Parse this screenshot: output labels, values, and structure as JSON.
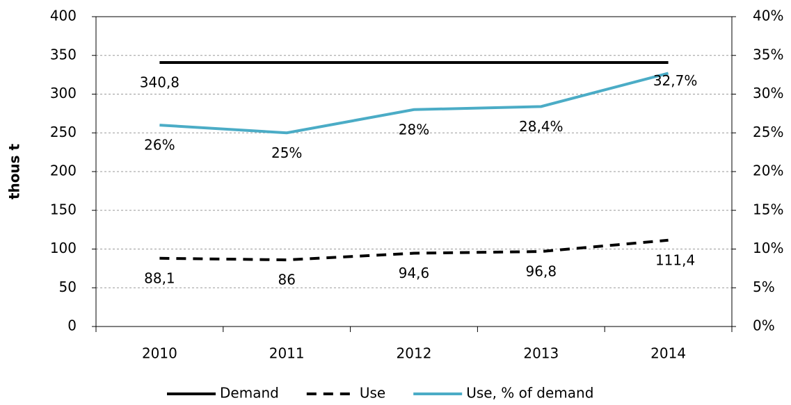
{
  "chart_data": {
    "type": "line",
    "y_label": "thous t",
    "categories": [
      "2010",
      "2011",
      "2012",
      "2013",
      "2014"
    ],
    "series": [
      {
        "name": "Demand",
        "color": "#000000",
        "style": "solid",
        "values": [
          340.8,
          340.8,
          340.8,
          340.8,
          340.8
        ],
        "value_labels": [
          "340,8",
          null,
          null,
          null,
          null
        ]
      },
      {
        "name": "Use",
        "color": "#000000",
        "style": "dashed",
        "values": [
          88.1,
          86,
          94.6,
          96.8,
          111.4
        ],
        "value_labels": [
          "88,1",
          "86",
          "94,6",
          "96,8",
          "111,4"
        ]
      },
      {
        "name": "Use, % of demand",
        "color": "#4bacc6",
        "style": "solid",
        "axis": "y2",
        "values": [
          26,
          25,
          28,
          28.4,
          32.7
        ],
        "value_labels": [
          "26%",
          "25%",
          "28%",
          "28,4%",
          "32,7%"
        ]
      }
    ],
    "ylim": [
      0,
      400
    ],
    "yticks": [
      0,
      50,
      100,
      150,
      200,
      250,
      300,
      350,
      400
    ],
    "y2lim": [
      0,
      40
    ],
    "y2ticks": [
      {
        "value": 0,
        "label": "0%"
      },
      {
        "value": 5,
        "label": "5%"
      },
      {
        "value": 10,
        "label": "10%"
      },
      {
        "value": 15,
        "label": "15%"
      },
      {
        "value": 20,
        "label": "20%"
      },
      {
        "value": 25,
        "label": "25%"
      },
      {
        "value": 30,
        "label": "30%"
      },
      {
        "value": 35,
        "label": "35%"
      },
      {
        "value": 40,
        "label": "40%"
      }
    ],
    "grid": true,
    "legend": "bottom"
  }
}
